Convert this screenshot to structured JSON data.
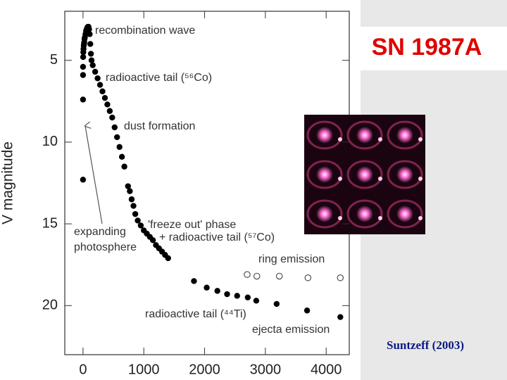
{
  "chart_data": {
    "type": "scatter",
    "title": "SN 1987A",
    "credit": "Suntzeff (2003)",
    "y_label": "V magnitude",
    "xlim": [
      -300,
      4380
    ],
    "ylim": [
      2,
      23
    ],
    "invert_y": true,
    "xticks": [
      0,
      1000,
      2000,
      3000,
      4000
    ],
    "yticks": [
      5,
      10,
      15,
      20
    ],
    "grid": false,
    "series": [
      {
        "marker": "filled",
        "color": "#000000",
        "x": [
          0,
          0,
          0,
          0,
          2,
          5,
          8,
          12,
          16,
          20,
          25,
          30,
          40,
          50,
          60,
          70,
          80,
          90,
          100,
          110,
          120,
          130,
          140,
          160,
          200,
          240,
          280,
          320,
          360,
          400,
          440,
          480,
          520,
          560,
          600,
          640,
          680,
          740,
          770,
          800,
          830,
          860,
          900,
          950,
          1000,
          1050,
          1100,
          1150,
          1200,
          1250,
          1300,
          1350,
          1400,
          1825,
          2035,
          2210,
          2370,
          2535,
          2710,
          2850,
          3185,
          3686,
          4233
        ],
        "values": [
          12.3,
          7.4,
          5.9,
          5.4,
          4.8,
          4.5,
          4.3,
          4.1,
          4.0,
          3.9,
          3.7,
          3.6,
          3.4,
          3.2,
          3.1,
          3.0,
          2.95,
          2.95,
          3.1,
          3.4,
          4.0,
          4.6,
          5.0,
          5.3,
          5.7,
          6.1,
          6.5,
          6.9,
          7.3,
          7.7,
          8.1,
          8.5,
          9.1,
          9.7,
          10.3,
          10.9,
          11.5,
          12.7,
          13.0,
          13.5,
          13.9,
          14.4,
          14.8,
          15.1,
          15.4,
          15.6,
          15.8,
          16.0,
          16.3,
          16.5,
          16.7,
          16.9,
          17.1,
          18.5,
          18.9,
          19.1,
          19.3,
          19.4,
          19.5,
          19.7,
          19.9,
          20.3,
          20.7
        ]
      },
      {
        "marker": "open",
        "color": "#444444",
        "x": [
          2700,
          2860,
          3230,
          3700,
          4233
        ],
        "values": [
          18.1,
          18.2,
          18.2,
          18.3,
          18.3
        ]
      }
    ],
    "annotations": [
      "recombination wave",
      "radioactive tail (⁵⁶Co)",
      "dust formation",
      "expanding",
      "photosphere",
      "'freeze out' phase",
      "+ radioactive tail (⁵⁷Co)",
      "ring emission",
      "radioactive tail (⁴⁴Ti)",
      "ejecta emission"
    ]
  }
}
